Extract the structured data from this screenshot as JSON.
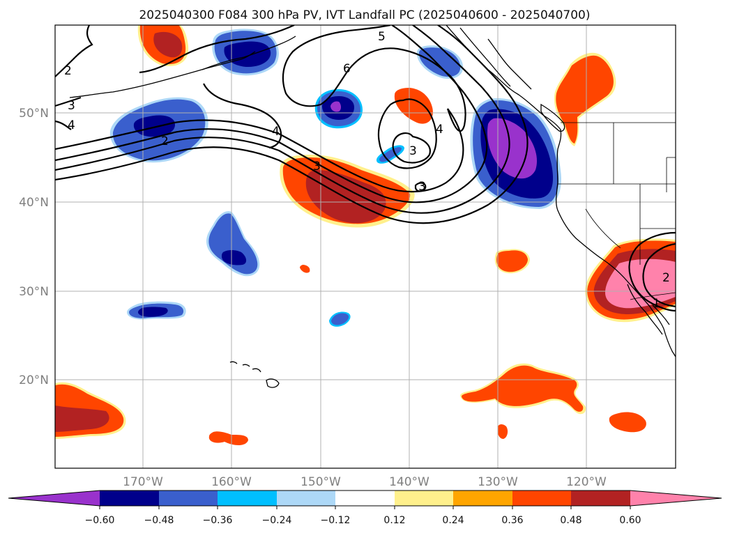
{
  "title": "2025040300 F084 300 hPa PV, IVT Landfall PC (2025040600 - 2025040700)",
  "map": {
    "lat_range": [
      10,
      60
    ],
    "lon_range": [
      -180,
      -110
    ],
    "lat_ticks": [
      {
        "value": 50,
        "label": "50°N"
      },
      {
        "value": 40,
        "label": "40°N"
      },
      {
        "value": 30,
        "label": "30°N"
      },
      {
        "value": 20,
        "label": "20°N"
      }
    ],
    "lon_ticks": [
      {
        "value": -170,
        "label": "170°W"
      },
      {
        "value": -160,
        "label": "160°W"
      },
      {
        "value": -150,
        "label": "150°W"
      },
      {
        "value": -140,
        "label": "140°W"
      },
      {
        "value": -130,
        "label": "130°W"
      },
      {
        "value": -120,
        "label": "120°W"
      }
    ],
    "gridlines": true
  },
  "contour_labels": [
    "2",
    "3",
    "4",
    "2",
    "6",
    "5",
    "4",
    "3",
    "3",
    "3",
    "4",
    "1",
    "2"
  ],
  "colorbar": {
    "colors": [
      "#9932cc",
      "#00008b",
      "#3a5fcd",
      "#00bfff",
      "#add8f7",
      "#ffffff",
      "#fff08c",
      "#ffa500",
      "#ff4500",
      "#b22222",
      "#ff82ab"
    ],
    "tick_labels": [
      "−0.60",
      "−0.48",
      "−0.36",
      "−0.24",
      "−0.12",
      "0.12",
      "0.24",
      "0.36",
      "0.48",
      "0.60"
    ],
    "extend": "both"
  }
}
